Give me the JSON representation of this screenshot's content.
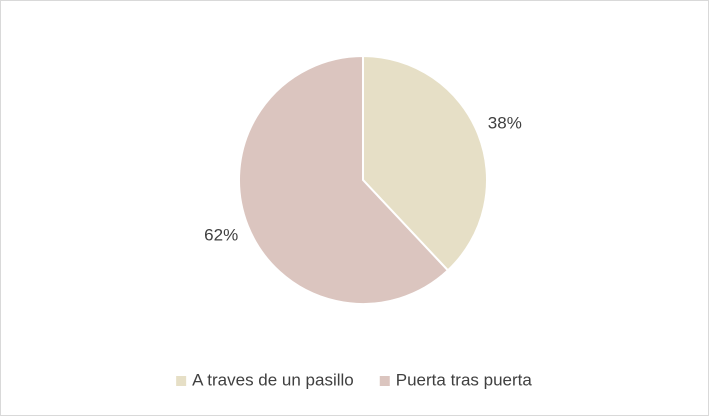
{
  "chart_data": {
    "type": "pie",
    "categories": [
      "A traves de un pasillo",
      "Puerta tras puerta"
    ],
    "values": [
      38,
      62
    ],
    "value_labels": [
      "38%",
      "62%"
    ],
    "colors": [
      "#e6dfc6",
      "#dbc5bf"
    ],
    "legend": "bottom"
  }
}
